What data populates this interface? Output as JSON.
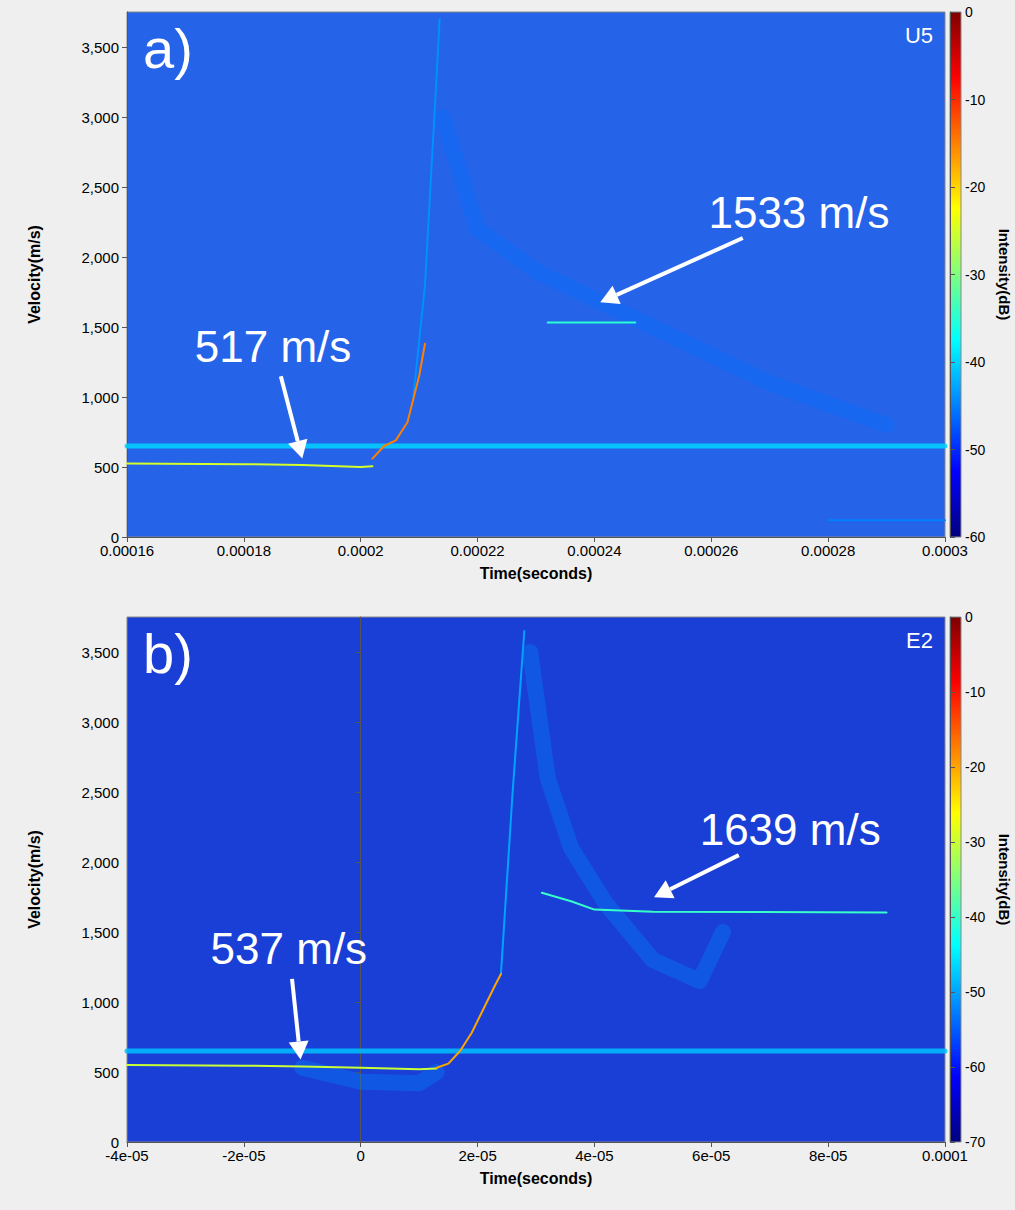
{
  "chart_data": [
    {
      "type": "line",
      "panel_label": "a)",
      "title": "U5",
      "xlabel": "Time(seconds)",
      "ylabel": "Velocity(m/s)",
      "xlim": [
        0.00016,
        0.0003
      ],
      "xticks": [
        0.00016,
        0.00018,
        0.0002,
        0.00022,
        0.00024,
        0.00026,
        0.00028,
        0.0003
      ],
      "ylim": [
        0,
        3750
      ],
      "yticks": [
        0,
        500,
        {
          "value": 1000,
          "label": "1,000"
        },
        {
          "value": 1500,
          "label": "1,500"
        },
        {
          "value": 2000,
          "label": "2,000"
        },
        {
          "value": 2500,
          "label": "2,500"
        },
        {
          "value": 3000,
          "label": "3,000"
        },
        {
          "value": 3500,
          "label": "3,500"
        }
      ],
      "grid": false,
      "colorbar": {
        "label": "Intensity(dB)",
        "range": [
          -60,
          0
        ],
        "ticks": [
          0,
          -10,
          -20,
          -30,
          -40,
          -50,
          -60
        ]
      },
      "series": [
        {
          "intensity": -40,
          "line_style": "band",
          "x": [
            0.00016,
            0.0003
          ],
          "values": [
            650,
            650
          ]
        },
        {
          "intensity": -46,
          "line_style": "diffuse",
          "x": [
            0.000214,
            0.00022,
            0.00023,
            0.00025,
            0.00027,
            0.00029
          ],
          "values": [
            3000,
            2200,
            1900,
            1500,
            1100,
            800
          ]
        },
        {
          "intensity": -44,
          "line_style": "solid",
          "x": [
            0.000209,
            0.000211,
            0.000213,
            0.0002135
          ],
          "values": [
            1000,
            1800,
            3300,
            3700
          ]
        },
        {
          "intensity": -25,
          "line_style": "solid",
          "x": [
            0.00016,
            0.00018,
            0.00019,
            0.0002,
            0.000202
          ],
          "values": [
            525,
            520,
            515,
            500,
            505
          ]
        },
        {
          "intensity": -15,
          "line_style": "solid",
          "x": [
            0.000202,
            0.000204,
            0.000206,
            0.000208,
            0.00021,
            0.000211
          ],
          "values": [
            560,
            650,
            690,
            820,
            1150,
            1380
          ]
        },
        {
          "intensity": -35,
          "line_style": "solid",
          "x": [
            0.000232,
            0.000247
          ],
          "values": [
            1533,
            1533
          ]
        },
        {
          "intensity": -45,
          "line_style": "solid",
          "x": [
            0.00028,
            0.0003
          ],
          "values": [
            120,
            120
          ]
        }
      ],
      "annotations": [
        {
          "text": "517 m/s",
          "xy": [
            0.00019,
            560
          ],
          "xytext": [
            0.000185,
            1360
          ]
        },
        {
          "text": "1533 m/s",
          "xy": [
            0.000241,
            1677
          ],
          "xytext": [
            0.000275,
            2316
          ]
        }
      ]
    },
    {
      "type": "line",
      "panel_label": "b)",
      "title": "E2",
      "xlabel": "Time(seconds)",
      "ylabel": "Velocity(m/s)",
      "xlim": [
        -4e-05,
        0.0001
      ],
      "xticks": [
        {
          "value": -4e-05,
          "label": "-4e-05"
        },
        {
          "value": -2e-05,
          "label": "-2e-05"
        },
        0,
        {
          "value": 2e-05,
          "label": "2e-05"
        },
        {
          "value": 4e-05,
          "label": "4e-05"
        },
        {
          "value": 6e-05,
          "label": "6e-05"
        },
        {
          "value": 8e-05,
          "label": "8e-05"
        },
        0.0001
      ],
      "ylim": [
        0,
        3750
      ],
      "yticks": [
        0,
        500,
        {
          "value": 1000,
          "label": "1,000"
        },
        {
          "value": 1500,
          "label": "1,500"
        },
        {
          "value": 2000,
          "label": "2,000"
        },
        {
          "value": 2500,
          "label": "2,500"
        },
        {
          "value": 3000,
          "label": "3,000"
        },
        {
          "value": 3500,
          "label": "3,500"
        }
      ],
      "grid": false,
      "colorbar": {
        "label": "Intensity(dB)",
        "range": [
          -70,
          0
        ],
        "ticks": [
          0,
          -10,
          -20,
          -30,
          -40,
          -50,
          -60,
          -70
        ]
      },
      "series": [
        {
          "intensity": -48,
          "line_style": "band",
          "x": [
            -4e-05,
            0.0001
          ],
          "values": [
            650,
            650
          ]
        },
        {
          "intensity": -52,
          "line_style": "diffuse",
          "x": [
            -1e-05,
            0,
            1e-05,
            1.3e-05
          ],
          "values": [
            530,
            430,
            420,
            500
          ]
        },
        {
          "intensity": -52,
          "line_style": "diffuse",
          "x": [
            2.9e-05,
            3.2e-05,
            3.6e-05,
            4.2e-05,
            5e-05,
            5.8e-05,
            6.2e-05
          ],
          "values": [
            3500,
            2600,
            2100,
            1700,
            1300,
            1150,
            1500
          ]
        },
        {
          "intensity": -50,
          "line_style": "solid",
          "x": [
            2.4e-05,
            2.6e-05,
            2.8e-05
          ],
          "values": [
            1200,
            2500,
            3650
          ]
        },
        {
          "intensity": -30,
          "line_style": "solid",
          "x": [
            -4e-05,
            -2e-05,
            -1e-05,
            0,
            1e-05,
            1.3e-05
          ],
          "values": [
            550,
            545,
            540,
            530,
            520,
            525
          ]
        },
        {
          "intensity": -20,
          "line_style": "solid",
          "x": [
            1.3e-05,
            1.5e-05,
            1.7e-05,
            1.9e-05,
            2.1e-05,
            2.3e-05,
            2.4e-05
          ],
          "values": [
            530,
            560,
            650,
            780,
            950,
            1120,
            1200
          ]
        },
        {
          "intensity": -40,
          "line_style": "solid",
          "x": [
            3.1e-05,
            3.6e-05,
            4e-05,
            5e-05,
            9e-05
          ],
          "values": [
            1780,
            1720,
            1660,
            1645,
            1640
          ]
        }
      ],
      "annotations": [
        {
          "text": "537 m/s",
          "xy": [
            -1.03e-05,
            590
          ],
          "xytext": [
            -1.23e-05,
            1379
          ]
        },
        {
          "text": "1639 m/s",
          "xy": [
            5.02e-05,
            1748
          ],
          "xytext": [
            7.35e-05,
            2232
          ]
        }
      ]
    }
  ]
}
